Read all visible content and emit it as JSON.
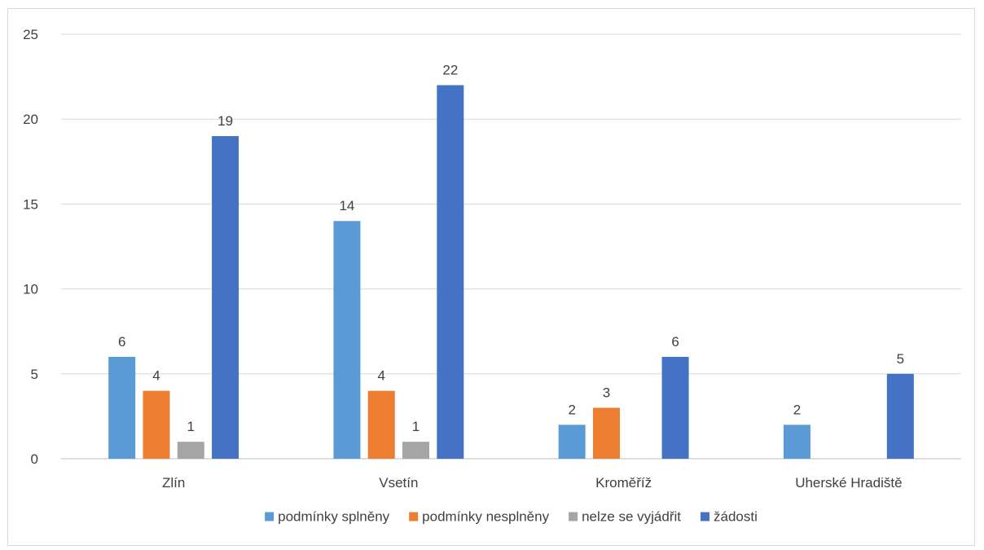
{
  "chart_data": {
    "type": "bar",
    "title": "",
    "xlabel": "",
    "ylabel": "",
    "ylim": [
      0,
      25
    ],
    "yticks": [
      0,
      5,
      10,
      15,
      20,
      25
    ],
    "grid": true,
    "legend_position": "bottom",
    "categories": [
      "Zlín",
      "Vsetín",
      "Kroměříž",
      "Uherské Hradiště"
    ],
    "series": [
      {
        "name": "podmínky splněny",
        "color": "#5B9BD5",
        "values": [
          6,
          14,
          2,
          2
        ]
      },
      {
        "name": "podmínky nesplněny",
        "color": "#ED7D31",
        "values": [
          4,
          4,
          3,
          null
        ]
      },
      {
        "name": "nelze se vyjádřit",
        "color": "#A5A5A5",
        "values": [
          1,
          1,
          null,
          null
        ]
      },
      {
        "name": "žádosti",
        "color": "#4472C4",
        "values": [
          19,
          22,
          6,
          5
        ]
      }
    ]
  }
}
